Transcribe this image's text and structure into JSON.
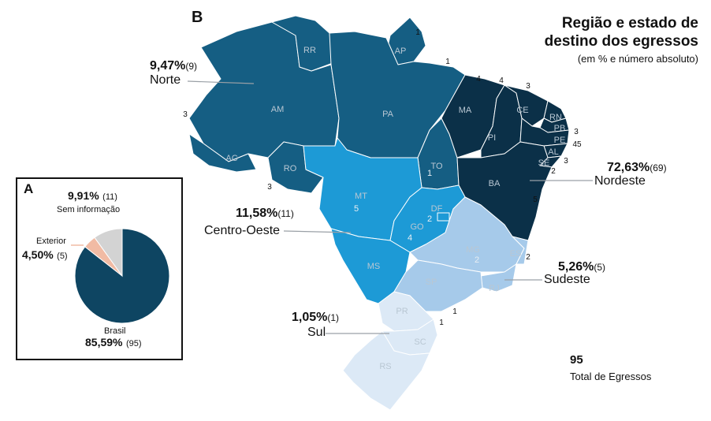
{
  "panels": {
    "a": "A",
    "b": "B"
  },
  "title_line1": "Região e estado de",
  "title_line2": "destino dos egressos",
  "subtitle": "(em % e número absoluto)",
  "total": {
    "value": "95",
    "label": "Total de Egressos"
  },
  "colors": {
    "norte": "#155e83",
    "nordeste": "#0b3048",
    "centro_oeste": "#1d9ad6",
    "sudeste": "#a6caea",
    "sul": "#dce9f6",
    "brasil": "#0e4562",
    "exterior": "#f1bba4",
    "sem_info": "#d3d3d3"
  },
  "regions": {
    "norte": {
      "name": "Norte",
      "pct": "9,47%",
      "count": "(9)"
    },
    "nordeste": {
      "name": "Nordeste",
      "pct": "72,63%",
      "count": "(69)"
    },
    "centro_oeste": {
      "name": "Centro-Oeste",
      "pct": "11,58%",
      "count": "(11)"
    },
    "sudeste": {
      "name": "Sudeste",
      "pct": "5,26%",
      "count": "(5)"
    },
    "sul": {
      "name": "Sul",
      "pct": "1,05%",
      "count": "(1)"
    }
  },
  "states": [
    "RR",
    "AP",
    "AM",
    "PA",
    "AC",
    "RO",
    "MA",
    "CE",
    "RN",
    "PB",
    "PE",
    "AL",
    "SE",
    "PI",
    "BA",
    "TO",
    "MT",
    "GO",
    "DF",
    "MS",
    "MG",
    "ES",
    "RJ",
    "SP",
    "PR",
    "SC",
    "RS"
  ],
  "state_counts": {
    "AP": "1",
    "PA": "1",
    "AM": "3",
    "RO": "3",
    "MA": "4",
    "MA2": "4",
    "CE": "3",
    "PB": "3",
    "PE": "45",
    "AL": "3",
    "SE": "2",
    "BA": "5",
    "TO": "1",
    "MT": "5",
    "GO": "4",
    "DF": "2",
    "MG": "2",
    "ES": "2",
    "SP": "1",
    "PR": "1"
  },
  "chart_data": {
    "type": "pie",
    "categories": [
      "Brasil",
      "Exterior",
      "Sem informação"
    ],
    "values": [
      85.59,
      4.5,
      9.91
    ],
    "counts": [
      95,
      5,
      11
    ],
    "pct_labels": [
      "85,59%",
      "4,50%",
      "9,91%"
    ],
    "count_labels": [
      "(95)",
      "(5)",
      "(11)"
    ],
    "colors": [
      "#0e4562",
      "#f1bba4",
      "#d3d3d3"
    ]
  }
}
